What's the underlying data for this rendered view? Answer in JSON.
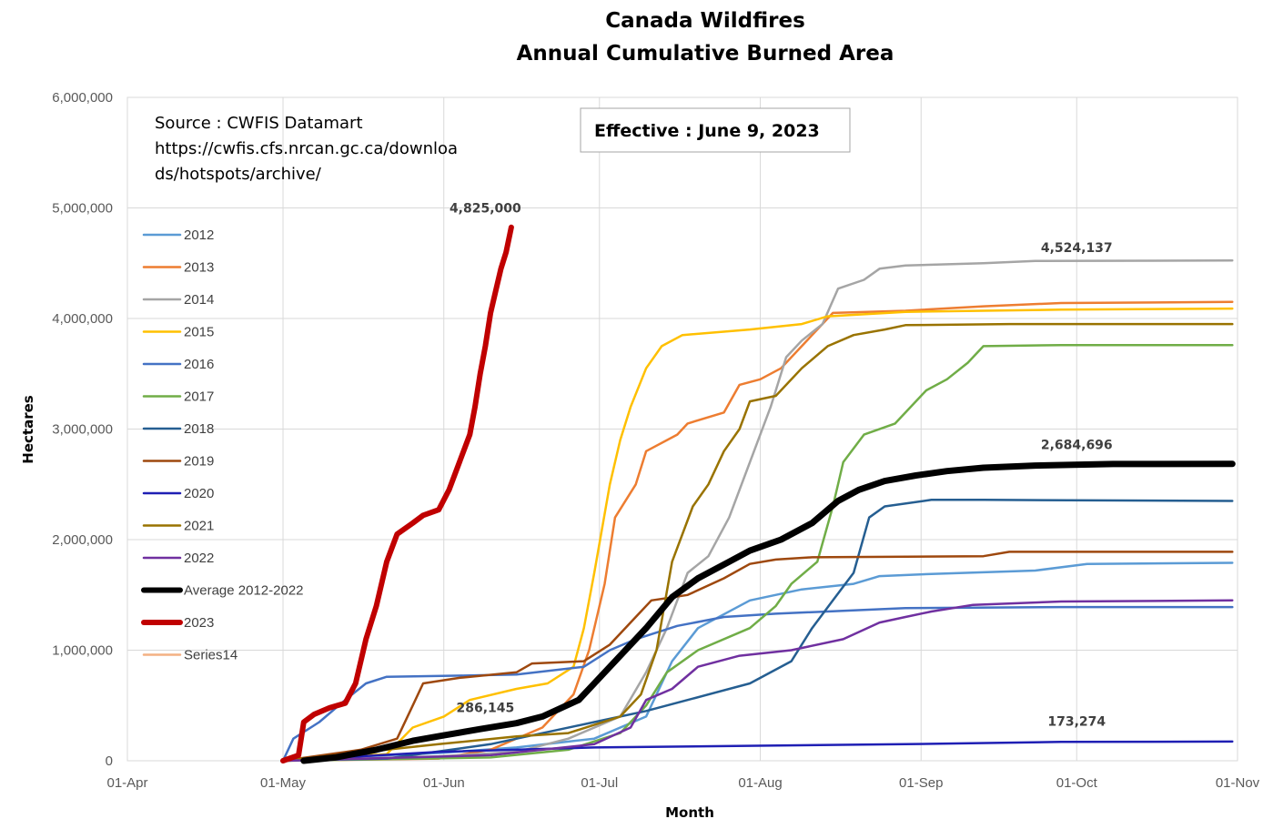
{
  "chart_data": {
    "type": "line",
    "title": "Canada Wildfires",
    "subtitle": "Annual Cumulative Burned Area",
    "xlabel": "Month",
    "ylabel": "Hectares",
    "xlim": [
      0,
      214
    ],
    "ylim": [
      0,
      6000000
    ],
    "x_ticks": [
      {
        "label": "01-Apr",
        "day": 0
      },
      {
        "label": "01-May",
        "day": 30
      },
      {
        "label": "01-Jun",
        "day": 61
      },
      {
        "label": "01-Jul",
        "day": 91
      },
      {
        "label": "01-Aug",
        "day": 122
      },
      {
        "label": "01-Sep",
        "day": 153
      },
      {
        "label": "01-Oct",
        "day": 183
      },
      {
        "label": "01-Nov",
        "day": 214
      }
    ],
    "y_ticks": [
      {
        "label": "0",
        "value": 0
      },
      {
        "label": "1,000,000",
        "value": 1000000
      },
      {
        "label": "2,000,000",
        "value": 2000000
      },
      {
        "label": "3,000,000",
        "value": 3000000
      },
      {
        "label": "4,000,000",
        "value": 4000000
      },
      {
        "label": "5,000,000",
        "value": 5000000
      },
      {
        "label": "6,000,000",
        "value": 6000000
      }
    ],
    "grid": true,
    "legend_position": "left",
    "source_lines": [
      "Source : CWFIS Datamart",
      "https://cwfis.cfs.nrcan.gc.ca/downloa",
      "ds/hotspots/archive/"
    ],
    "effective_label": "Effective : June 9, 2023",
    "annotations": [
      {
        "text": "4,825,000",
        "x": 69,
        "y": 5000000
      },
      {
        "text": "4,524,137",
        "x": 183,
        "y": 4640000
      },
      {
        "text": "2,684,696",
        "x": 183,
        "y": 2860000
      },
      {
        "text": "286,145",
        "x": 69,
        "y": 480000
      },
      {
        "text": "173,274",
        "x": 183,
        "y": 360000
      }
    ],
    "series": [
      {
        "name": "2012",
        "color": "#5B9BD5",
        "width": 2.5,
        "points": [
          [
            30,
            0
          ],
          [
            40,
            30000
          ],
          [
            60,
            70000
          ],
          [
            75,
            120000
          ],
          [
            90,
            200000
          ],
          [
            100,
            400000
          ],
          [
            105,
            900000
          ],
          [
            110,
            1200000
          ],
          [
            120,
            1450000
          ],
          [
            130,
            1550000
          ],
          [
            140,
            1600000
          ],
          [
            145,
            1670000
          ],
          [
            155,
            1690000
          ],
          [
            175,
            1720000
          ],
          [
            185,
            1780000
          ],
          [
            213,
            1790000
          ]
        ]
      },
      {
        "name": "2013",
        "color": "#ED7D31",
        "width": 2.5,
        "points": [
          [
            30,
            0
          ],
          [
            60,
            20000
          ],
          [
            70,
            100000
          ],
          [
            80,
            300000
          ],
          [
            86,
            600000
          ],
          [
            89,
            1000000
          ],
          [
            92,
            1600000
          ],
          [
            94,
            2200000
          ],
          [
            98,
            2500000
          ],
          [
            100,
            2800000
          ],
          [
            106,
            2950000
          ],
          [
            108,
            3050000
          ],
          [
            115,
            3150000
          ],
          [
            118,
            3400000
          ],
          [
            122,
            3450000
          ],
          [
            126,
            3550000
          ],
          [
            132,
            3850000
          ],
          [
            136,
            4050000
          ],
          [
            150,
            4070000
          ],
          [
            165,
            4110000
          ],
          [
            180,
            4140000
          ],
          [
            213,
            4150000
          ]
        ]
      },
      {
        "name": "2014",
        "color": "#A5A5A5",
        "width": 2.5,
        "points": [
          [
            30,
            0
          ],
          [
            60,
            40000
          ],
          [
            75,
            80000
          ],
          [
            85,
            200000
          ],
          [
            95,
            400000
          ],
          [
            100,
            800000
          ],
          [
            104,
            1200000
          ],
          [
            108,
            1700000
          ],
          [
            112,
            1850000
          ],
          [
            116,
            2200000
          ],
          [
            120,
            2700000
          ],
          [
            124,
            3200000
          ],
          [
            127,
            3650000
          ],
          [
            130,
            3800000
          ],
          [
            134,
            3950000
          ],
          [
            137,
            4270000
          ],
          [
            142,
            4350000
          ],
          [
            145,
            4450000
          ],
          [
            150,
            4480000
          ],
          [
            165,
            4500000
          ],
          [
            175,
            4520000
          ],
          [
            213,
            4524137
          ]
        ]
      },
      {
        "name": "2015",
        "color": "#FFC000",
        "width": 2.5,
        "points": [
          [
            30,
            0
          ],
          [
            50,
            60000
          ],
          [
            55,
            300000
          ],
          [
            61,
            400000
          ],
          [
            66,
            550000
          ],
          [
            75,
            650000
          ],
          [
            81,
            700000
          ],
          [
            86,
            850000
          ],
          [
            88,
            1200000
          ],
          [
            90,
            1700000
          ],
          [
            93,
            2500000
          ],
          [
            95,
            2900000
          ],
          [
            97,
            3200000
          ],
          [
            100,
            3550000
          ],
          [
            103,
            3750000
          ],
          [
            107,
            3850000
          ],
          [
            120,
            3900000
          ],
          [
            130,
            3950000
          ],
          [
            135,
            4020000
          ],
          [
            150,
            4060000
          ],
          [
            180,
            4080000
          ],
          [
            213,
            4090000
          ]
        ]
      },
      {
        "name": "2016",
        "color": "#4472C4",
        "width": 2.5,
        "points": [
          [
            30,
            0
          ],
          [
            32,
            200000
          ],
          [
            37,
            350000
          ],
          [
            42,
            550000
          ],
          [
            46,
            700000
          ],
          [
            50,
            760000
          ],
          [
            65,
            770000
          ],
          [
            75,
            780000
          ],
          [
            88,
            850000
          ],
          [
            93,
            1000000
          ],
          [
            98,
            1100000
          ],
          [
            106,
            1220000
          ],
          [
            115,
            1300000
          ],
          [
            125,
            1330000
          ],
          [
            150,
            1380000
          ],
          [
            180,
            1390000
          ],
          [
            213,
            1390000
          ]
        ]
      },
      {
        "name": "2017",
        "color": "#70AD47",
        "width": 2.5,
        "points": [
          [
            30,
            0
          ],
          [
            70,
            30000
          ],
          [
            85,
            100000
          ],
          [
            95,
            250000
          ],
          [
            100,
            500000
          ],
          [
            104,
            800000
          ],
          [
            110,
            1000000
          ],
          [
            120,
            1200000
          ],
          [
            125,
            1400000
          ],
          [
            128,
            1600000
          ],
          [
            133,
            1800000
          ],
          [
            136,
            2300000
          ],
          [
            138,
            2700000
          ],
          [
            142,
            2950000
          ],
          [
            148,
            3050000
          ],
          [
            154,
            3350000
          ],
          [
            158,
            3450000
          ],
          [
            162,
            3600000
          ],
          [
            165,
            3750000
          ],
          [
            180,
            3760000
          ],
          [
            213,
            3760000
          ]
        ]
      },
      {
        "name": "2018",
        "color": "#255E91",
        "width": 2.5,
        "points": [
          [
            30,
            0
          ],
          [
            50,
            20000
          ],
          [
            70,
            150000
          ],
          [
            90,
            350000
          ],
          [
            100,
            450000
          ],
          [
            108,
            550000
          ],
          [
            120,
            700000
          ],
          [
            128,
            900000
          ],
          [
            132,
            1200000
          ],
          [
            136,
            1450000
          ],
          [
            140,
            1700000
          ],
          [
            143,
            2200000
          ],
          [
            146,
            2300000
          ],
          [
            155,
            2360000
          ],
          [
            165,
            2360000
          ],
          [
            213,
            2350000
          ]
        ]
      },
      {
        "name": "2019",
        "color": "#9E480E",
        "width": 2.5,
        "points": [
          [
            30,
            0
          ],
          [
            45,
            100000
          ],
          [
            52,
            200000
          ],
          [
            55,
            500000
          ],
          [
            57,
            700000
          ],
          [
            64,
            750000
          ],
          [
            75,
            800000
          ],
          [
            78,
            880000
          ],
          [
            88,
            900000
          ],
          [
            93,
            1050000
          ],
          [
            98,
            1300000
          ],
          [
            101,
            1450000
          ],
          [
            108,
            1500000
          ],
          [
            115,
            1650000
          ],
          [
            120,
            1780000
          ],
          [
            125,
            1820000
          ],
          [
            132,
            1840000
          ],
          [
            165,
            1850000
          ],
          [
            170,
            1890000
          ],
          [
            213,
            1890000
          ]
        ]
      },
      {
        "name": "2020",
        "color": "#1F1FB4",
        "width": 2.5,
        "points": [
          [
            30,
            0
          ],
          [
            60,
            80000
          ],
          [
            90,
            120000
          ],
          [
            150,
            150000
          ],
          [
            180,
            170000
          ],
          [
            213,
            173274
          ]
        ]
      },
      {
        "name": "2021",
        "color": "#997300",
        "width": 2.5,
        "points": [
          [
            30,
            0
          ],
          [
            60,
            150000
          ],
          [
            75,
            220000
          ],
          [
            85,
            250000
          ],
          [
            95,
            400000
          ],
          [
            99,
            600000
          ],
          [
            102,
            1000000
          ],
          [
            105,
            1800000
          ],
          [
            109,
            2300000
          ],
          [
            112,
            2500000
          ],
          [
            115,
            2800000
          ],
          [
            118,
            3000000
          ],
          [
            120,
            3250000
          ],
          [
            125,
            3300000
          ],
          [
            130,
            3550000
          ],
          [
            135,
            3750000
          ],
          [
            140,
            3850000
          ],
          [
            146,
            3900000
          ],
          [
            150,
            3940000
          ],
          [
            170,
            3950000
          ],
          [
            213,
            3950000
          ]
        ]
      },
      {
        "name": "2022",
        "color": "#7030A0",
        "width": 2.5,
        "points": [
          [
            30,
            0
          ],
          [
            70,
            50000
          ],
          [
            90,
            150000
          ],
          [
            97,
            300000
          ],
          [
            100,
            550000
          ],
          [
            105,
            650000
          ],
          [
            110,
            850000
          ],
          [
            118,
            950000
          ],
          [
            128,
            1000000
          ],
          [
            138,
            1100000
          ],
          [
            145,
            1250000
          ],
          [
            150,
            1300000
          ],
          [
            155,
            1350000
          ],
          [
            163,
            1410000
          ],
          [
            180,
            1440000
          ],
          [
            213,
            1450000
          ]
        ]
      },
      {
        "name": "Average 2012-2022",
        "color": "#000000",
        "width": 7,
        "points": [
          [
            34,
            0
          ],
          [
            40,
            30000
          ],
          [
            48,
            100000
          ],
          [
            55,
            180000
          ],
          [
            61,
            230000
          ],
          [
            68,
            286145
          ],
          [
            75,
            340000
          ],
          [
            80,
            400000
          ],
          [
            87,
            550000
          ],
          [
            90,
            700000
          ],
          [
            95,
            950000
          ],
          [
            100,
            1200000
          ],
          [
            105,
            1480000
          ],
          [
            110,
            1650000
          ],
          [
            116,
            1800000
          ],
          [
            120,
            1900000
          ],
          [
            126,
            2000000
          ],
          [
            132,
            2150000
          ],
          [
            137,
            2350000
          ],
          [
            141,
            2450000
          ],
          [
            146,
            2530000
          ],
          [
            152,
            2580000
          ],
          [
            158,
            2620000
          ],
          [
            165,
            2650000
          ],
          [
            175,
            2670000
          ],
          [
            190,
            2684000
          ],
          [
            213,
            2684696
          ]
        ]
      },
      {
        "name": "2023",
        "color": "#C00000",
        "width": 6,
        "points": [
          [
            30,
            0
          ],
          [
            33,
            50000
          ],
          [
            34,
            350000
          ],
          [
            36,
            420000
          ],
          [
            39,
            480000
          ],
          [
            42,
            520000
          ],
          [
            44,
            700000
          ],
          [
            46,
            1100000
          ],
          [
            48,
            1400000
          ],
          [
            50,
            1800000
          ],
          [
            52,
            2050000
          ],
          [
            55,
            2150000
          ],
          [
            57,
            2220000
          ],
          [
            60,
            2270000
          ],
          [
            62,
            2450000
          ],
          [
            64,
            2700000
          ],
          [
            66,
            2950000
          ],
          [
            67,
            3200000
          ],
          [
            68,
            3500000
          ],
          [
            69,
            3750000
          ],
          [
            70,
            4050000
          ],
          [
            71,
            4250000
          ],
          [
            72,
            4450000
          ],
          [
            73,
            4600000
          ],
          [
            74,
            4825000
          ]
        ]
      },
      {
        "name": "Series14",
        "color": "#F4B183",
        "width": 2.5,
        "points": []
      }
    ]
  }
}
